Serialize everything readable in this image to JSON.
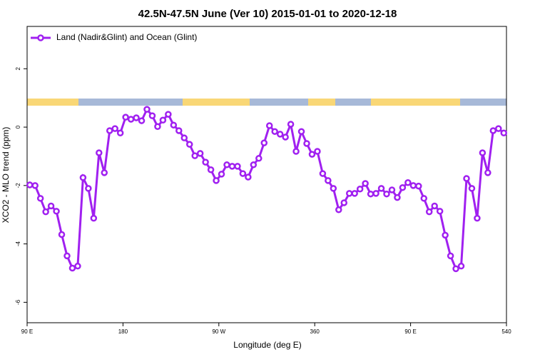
{
  "chart_data": {
    "type": "line",
    "title": "42.5N-47.5N June (Ver 10)   2015-01-01 to 2020-12-18",
    "xlabel": "Longitude (deg E)",
    "ylabel": "XCO2 - MLO trend (ppm)",
    "x": [
      92.5,
      97.5,
      102.5,
      107.5,
      112.5,
      117.5,
      122.5,
      127.5,
      132.5,
      137.5,
      142.5,
      147.5,
      152.5,
      157.5,
      162.5,
      167.5,
      172.5,
      177.5,
      182.5,
      187.5,
      192.5,
      197.5,
      202.5,
      207.5,
      212.5,
      217.5,
      222.5,
      227.5,
      232.5,
      237.5,
      242.5,
      247.5,
      252.5,
      257.5,
      262.5,
      267.5,
      272.5,
      277.5,
      282.5,
      287.5,
      292.5,
      297.5,
      302.5,
      307.5,
      312.5,
      317.5,
      322.5,
      327.5,
      332.5,
      337.5,
      342.5,
      347.5,
      352.5,
      357.5,
      362.5,
      367.5,
      372.5,
      377.5,
      382.5,
      387.5,
      392.5,
      397.5,
      402.5,
      407.5,
      412.5,
      417.5,
      422.5,
      427.5,
      432.5,
      437.5,
      442.5,
      447.5,
      452.5,
      457.5,
      462.5,
      467.5,
      472.5,
      477.5,
      482.5,
      487.5,
      492.5,
      497.5,
      502.5,
      507.5,
      512.5,
      517.5,
      522.5,
      527.5,
      532.5,
      537.5
    ],
    "series": [
      {
        "name": "Land (Nadir&Glint) and Ocean (Glint)",
        "color": "#a020f0",
        "values": [
          -1.98,
          -2.0,
          -2.44,
          -2.9,
          -2.7,
          -2.88,
          -3.68,
          -4.41,
          -4.83,
          -4.76,
          -1.73,
          -2.1,
          -3.12,
          -0.88,
          -1.56,
          -0.12,
          -0.05,
          -0.2,
          0.34,
          0.27,
          0.32,
          0.22,
          0.61,
          0.39,
          0.02,
          0.24,
          0.44,
          0.07,
          -0.12,
          -0.37,
          -0.59,
          -0.98,
          -0.9,
          -1.2,
          -1.46,
          -1.83,
          -1.61,
          -1.29,
          -1.34,
          -1.34,
          -1.59,
          -1.71,
          -1.29,
          -1.07,
          -0.54,
          0.05,
          -0.15,
          -0.24,
          -0.34,
          0.1,
          -0.83,
          -0.15,
          -0.56,
          -0.93,
          -0.83,
          -1.59,
          -1.83,
          -2.1,
          -2.83,
          -2.59,
          -2.27,
          -2.27,
          -2.12,
          -1.93,
          -2.29,
          -2.27,
          -2.1,
          -2.29,
          -2.15,
          -2.41,
          -2.07,
          -1.9,
          -2.0,
          -2.02,
          -2.44,
          -2.9,
          -2.7,
          -2.88,
          -3.7,
          -4.41,
          -4.85,
          -4.76,
          -1.76,
          -2.1,
          -3.12,
          -0.88,
          -1.56,
          -0.12,
          -0.05,
          -0.2
        ]
      }
    ],
    "xlim": [
      90,
      540
    ],
    "xticks": [
      {
        "value": 90,
        "label": "90 E"
      },
      180,
      {
        "value": 270,
        "label": "90 W"
      },
      360,
      {
        "value": 450,
        "label": "90 E"
      },
      540
    ],
    "ylim": [
      -6.7,
      3.45
    ],
    "yticks": [
      -6,
      -4,
      -2,
      0,
      2
    ],
    "legend": "top-left"
  }
}
